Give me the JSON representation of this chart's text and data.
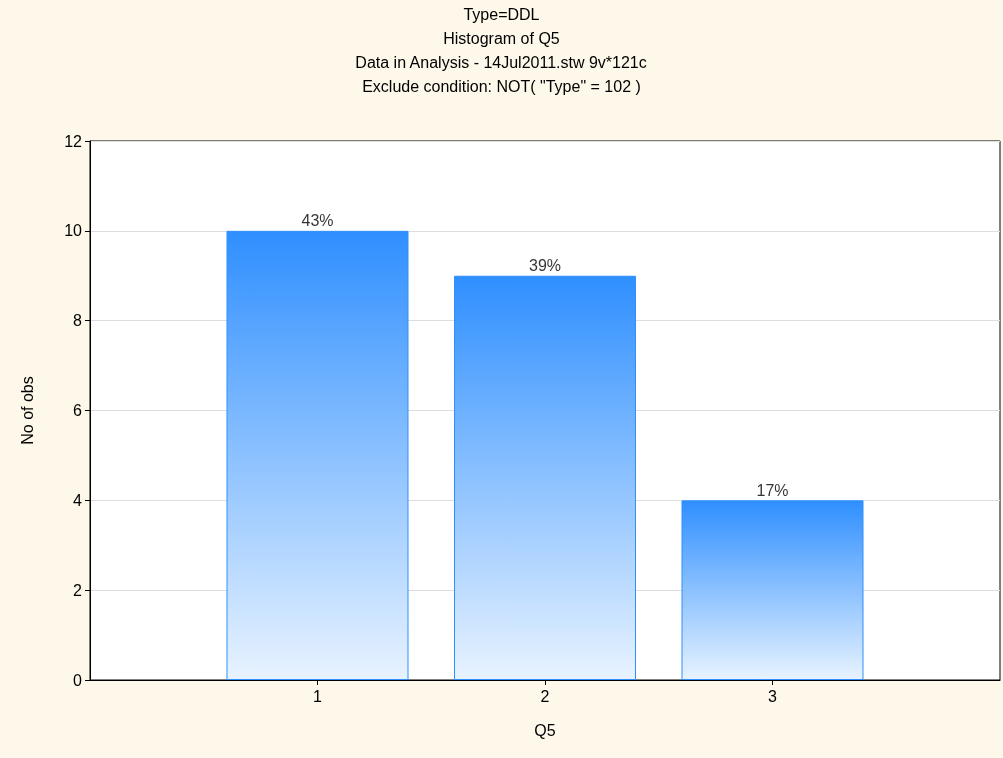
{
  "chart_data": {
    "type": "bar",
    "title": "Type=DDL",
    "subtitle": "Histogram of Q5",
    "annotations": [
      "Data in Analysis - 14Jul2011.stw 9v*121c",
      "Exclude condition: NOT( \"Type\" = 102 )",
      {
        "text": "43%",
        "x": 1,
        "y": 10
      },
      {
        "text": "39%",
        "x": 2,
        "y": 9
      },
      {
        "text": "17%",
        "x": 3,
        "y": 4
      }
    ],
    "xlabel": "Q5",
    "ylabel": "No of obs",
    "x": [
      1,
      2,
      3
    ],
    "values": [
      10,
      9,
      4
    ],
    "color": "#2f8fff",
    "xlim": [
      0,
      4
    ],
    "xticks": [
      1,
      2,
      3
    ],
    "ylim": [
      0,
      12
    ],
    "yticks": [
      0,
      2,
      4,
      6,
      8,
      10,
      12
    ],
    "grid": "y"
  }
}
